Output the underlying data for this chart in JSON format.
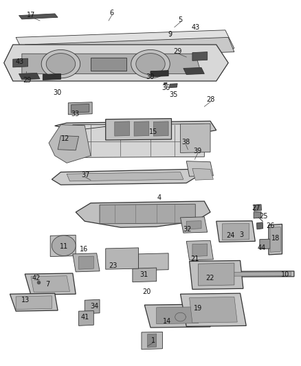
{
  "background_color": "#ffffff",
  "fig_width": 4.38,
  "fig_height": 5.33,
  "dpi": 100,
  "line_color": "#222222",
  "label_fontsize": 7,
  "label_color": "#111111",
  "lw_thin": 0.6,
  "lw_med": 0.9
}
